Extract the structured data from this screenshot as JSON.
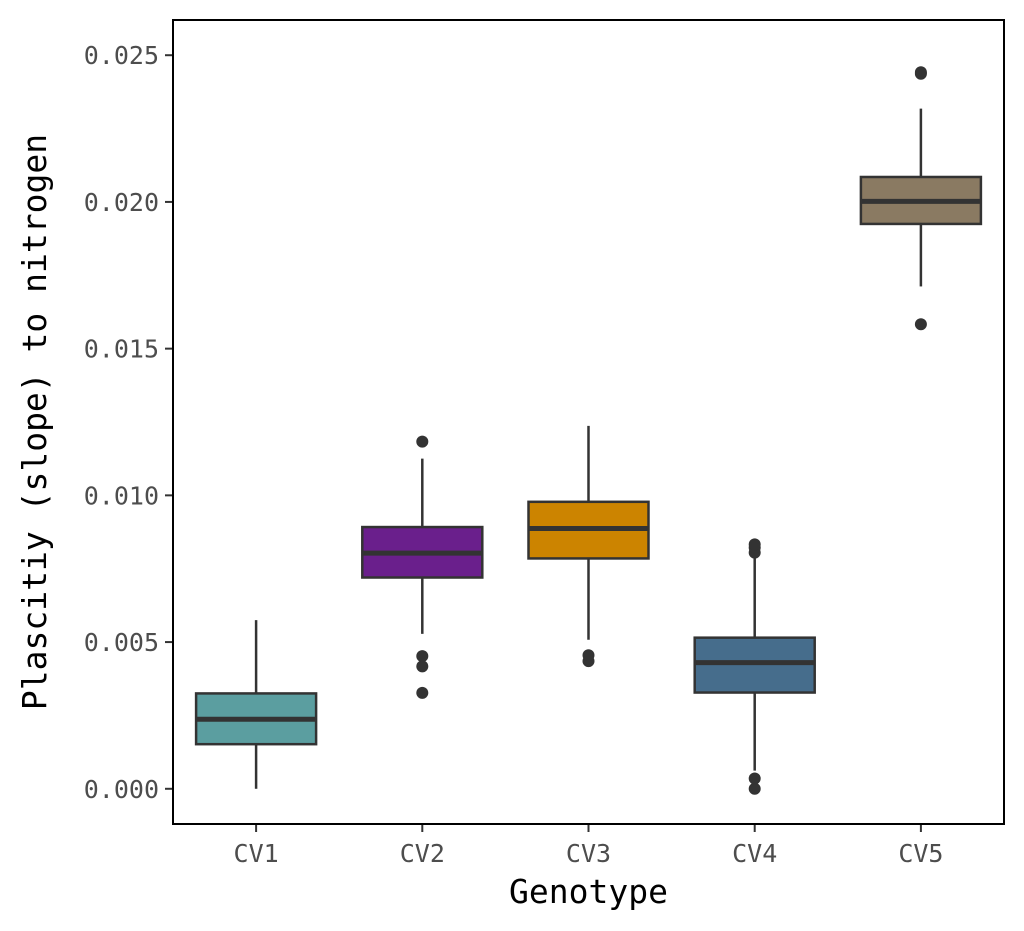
{
  "chart_data": {
    "type": "boxplot",
    "title": "",
    "xlabel": "Genotype",
    "ylabel": "Plascitiy (slope) to nitrogen",
    "ylim": [
      -0.0012,
      0.0262
    ],
    "y_ticks": [
      "0.000",
      "0.005",
      "0.010",
      "0.015",
      "0.020",
      "0.025"
    ],
    "y_tick_values": [
      0.0,
      0.005,
      0.01,
      0.015,
      0.02,
      0.025
    ],
    "categories": [
      "CV1",
      "CV2",
      "CV3",
      "CV4",
      "CV5"
    ],
    "grid": false,
    "legend": "none",
    "boxes": [
      {
        "category": "CV1",
        "color": "#5b9ea0",
        "whisker_low": 0.0,
        "q1": 0.00152,
        "median": 0.00237,
        "q3": 0.00325,
        "whisker_high": 0.00575,
        "outliers": []
      },
      {
        "category": "CV2",
        "color": "#6a1f8c",
        "whisker_low": 0.00528,
        "q1": 0.0072,
        "median": 0.00803,
        "q3": 0.00892,
        "whisker_high": 0.01125,
        "outliers": [
          0.00327,
          0.00417,
          0.00452,
          0.01183
        ]
      },
      {
        "category": "CV3",
        "color": "#cc8400",
        "whisker_low": 0.00508,
        "q1": 0.00785,
        "median": 0.00887,
        "q3": 0.00978,
        "whisker_high": 0.01237,
        "outliers": [
          0.00435,
          0.00455
        ]
      },
      {
        "category": "CV4",
        "color": "#466d8c",
        "whisker_low": 0.00062,
        "q1": 0.00328,
        "median": 0.0043,
        "q3": 0.00515,
        "whisker_high": 0.0079,
        "outliers": [
          0.0,
          0.00035,
          0.00805,
          0.00822,
          0.00833
        ]
      },
      {
        "category": "CV5",
        "color": "#8a7a62",
        "whisker_low": 0.01712,
        "q1": 0.01925,
        "median": 0.02002,
        "q3": 0.02085,
        "whisker_high": 0.02318,
        "outliers": [
          0.01583,
          0.02437,
          0.02442
        ]
      }
    ],
    "axis_color": "#000000",
    "box_stroke": "#333333",
    "point_color": "#333333"
  }
}
